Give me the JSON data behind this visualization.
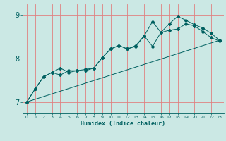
{
  "xlabel": "Humidex (Indice chaleur)",
  "bg_color": "#cbe8e4",
  "grid_color": "#e08080",
  "line_color": "#006060",
  "xlim": [
    -0.5,
    23.5
  ],
  "ylim": [
    6.75,
    9.25
  ],
  "yticks": [
    7,
    8,
    9
  ],
  "xticks": [
    0,
    1,
    2,
    3,
    4,
    5,
    6,
    7,
    8,
    9,
    10,
    11,
    12,
    13,
    14,
    15,
    16,
    17,
    18,
    19,
    20,
    21,
    22,
    23
  ],
  "series1_x": [
    0,
    1,
    2,
    3,
    4,
    5,
    6,
    7,
    8,
    9,
    10,
    11,
    12,
    13,
    14,
    15,
    16,
    17,
    18,
    19,
    20,
    21,
    22,
    23
  ],
  "series1_y": [
    7.0,
    7.3,
    7.58,
    7.68,
    7.78,
    7.68,
    7.72,
    7.72,
    7.78,
    8.02,
    8.22,
    8.3,
    8.22,
    8.28,
    8.52,
    8.85,
    8.6,
    8.8,
    8.97,
    8.88,
    8.78,
    8.7,
    8.58,
    8.42
  ],
  "series2_x": [
    0,
    1,
    2,
    3,
    4,
    5,
    6,
    7,
    8,
    9,
    10,
    11,
    12,
    13,
    14,
    15,
    16,
    17,
    18,
    19,
    20,
    21,
    22,
    23
  ],
  "series2_y": [
    7.0,
    7.3,
    7.58,
    7.68,
    7.62,
    7.72,
    7.72,
    7.75,
    7.78,
    8.02,
    8.22,
    8.3,
    8.22,
    8.3,
    8.52,
    8.28,
    8.6,
    8.65,
    8.68,
    8.8,
    8.75,
    8.62,
    8.48,
    8.4
  ],
  "series3_x": [
    0,
    23
  ],
  "series3_y": [
    7.0,
    8.42
  ]
}
